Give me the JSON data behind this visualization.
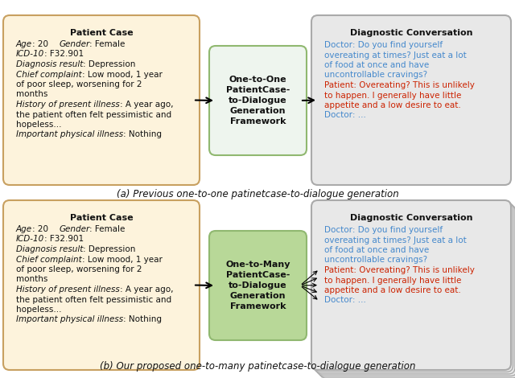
{
  "bg_color": "#ffffff",
  "patient_box_bg": "#fdf3dc",
  "patient_box_edge": "#c8a060",
  "diag_box_bg": "#e8e8e8",
  "diag_box_edge": "#aaaaaa",
  "framework_box_bg_top": "#eef5ee",
  "framework_box_bg_bot": "#b8d898",
  "framework_box_edge": "#90b870",
  "doctor_color": "#4488cc",
  "patient_color": "#cc2200",
  "text_color": "#111111",
  "caption_color": "#111111",
  "patient_title": "Patient Case",
  "diag_title": "Diagnostic Conversation",
  "framework_top": "One-to-One\nPatientCase-\nto-Dialogue\nGeneration\nFramework",
  "framework_bot": "One-to-Many\nPatientCase-\nto-Dialogue\nGeneration\nFramework",
  "caption_top": "(a) Previous one-to-one patinetcase-to-dialogue generation",
  "caption_bot": "(b) Our proposed one-to-many patinetcase-to-dialogue generation",
  "diag_segments": [
    [
      "doctor",
      "Doctor: Do you find yourself\novereating at times? Just eat a lot\nof food at once and have\nuncontrollable cravings?"
    ],
    [
      "patient",
      "Patient: Overeating? This is unlikely\nto happen. I generally have little\nappetite and a low desire to eat."
    ],
    [
      "doctor",
      "Doctor: ..."
    ]
  ]
}
